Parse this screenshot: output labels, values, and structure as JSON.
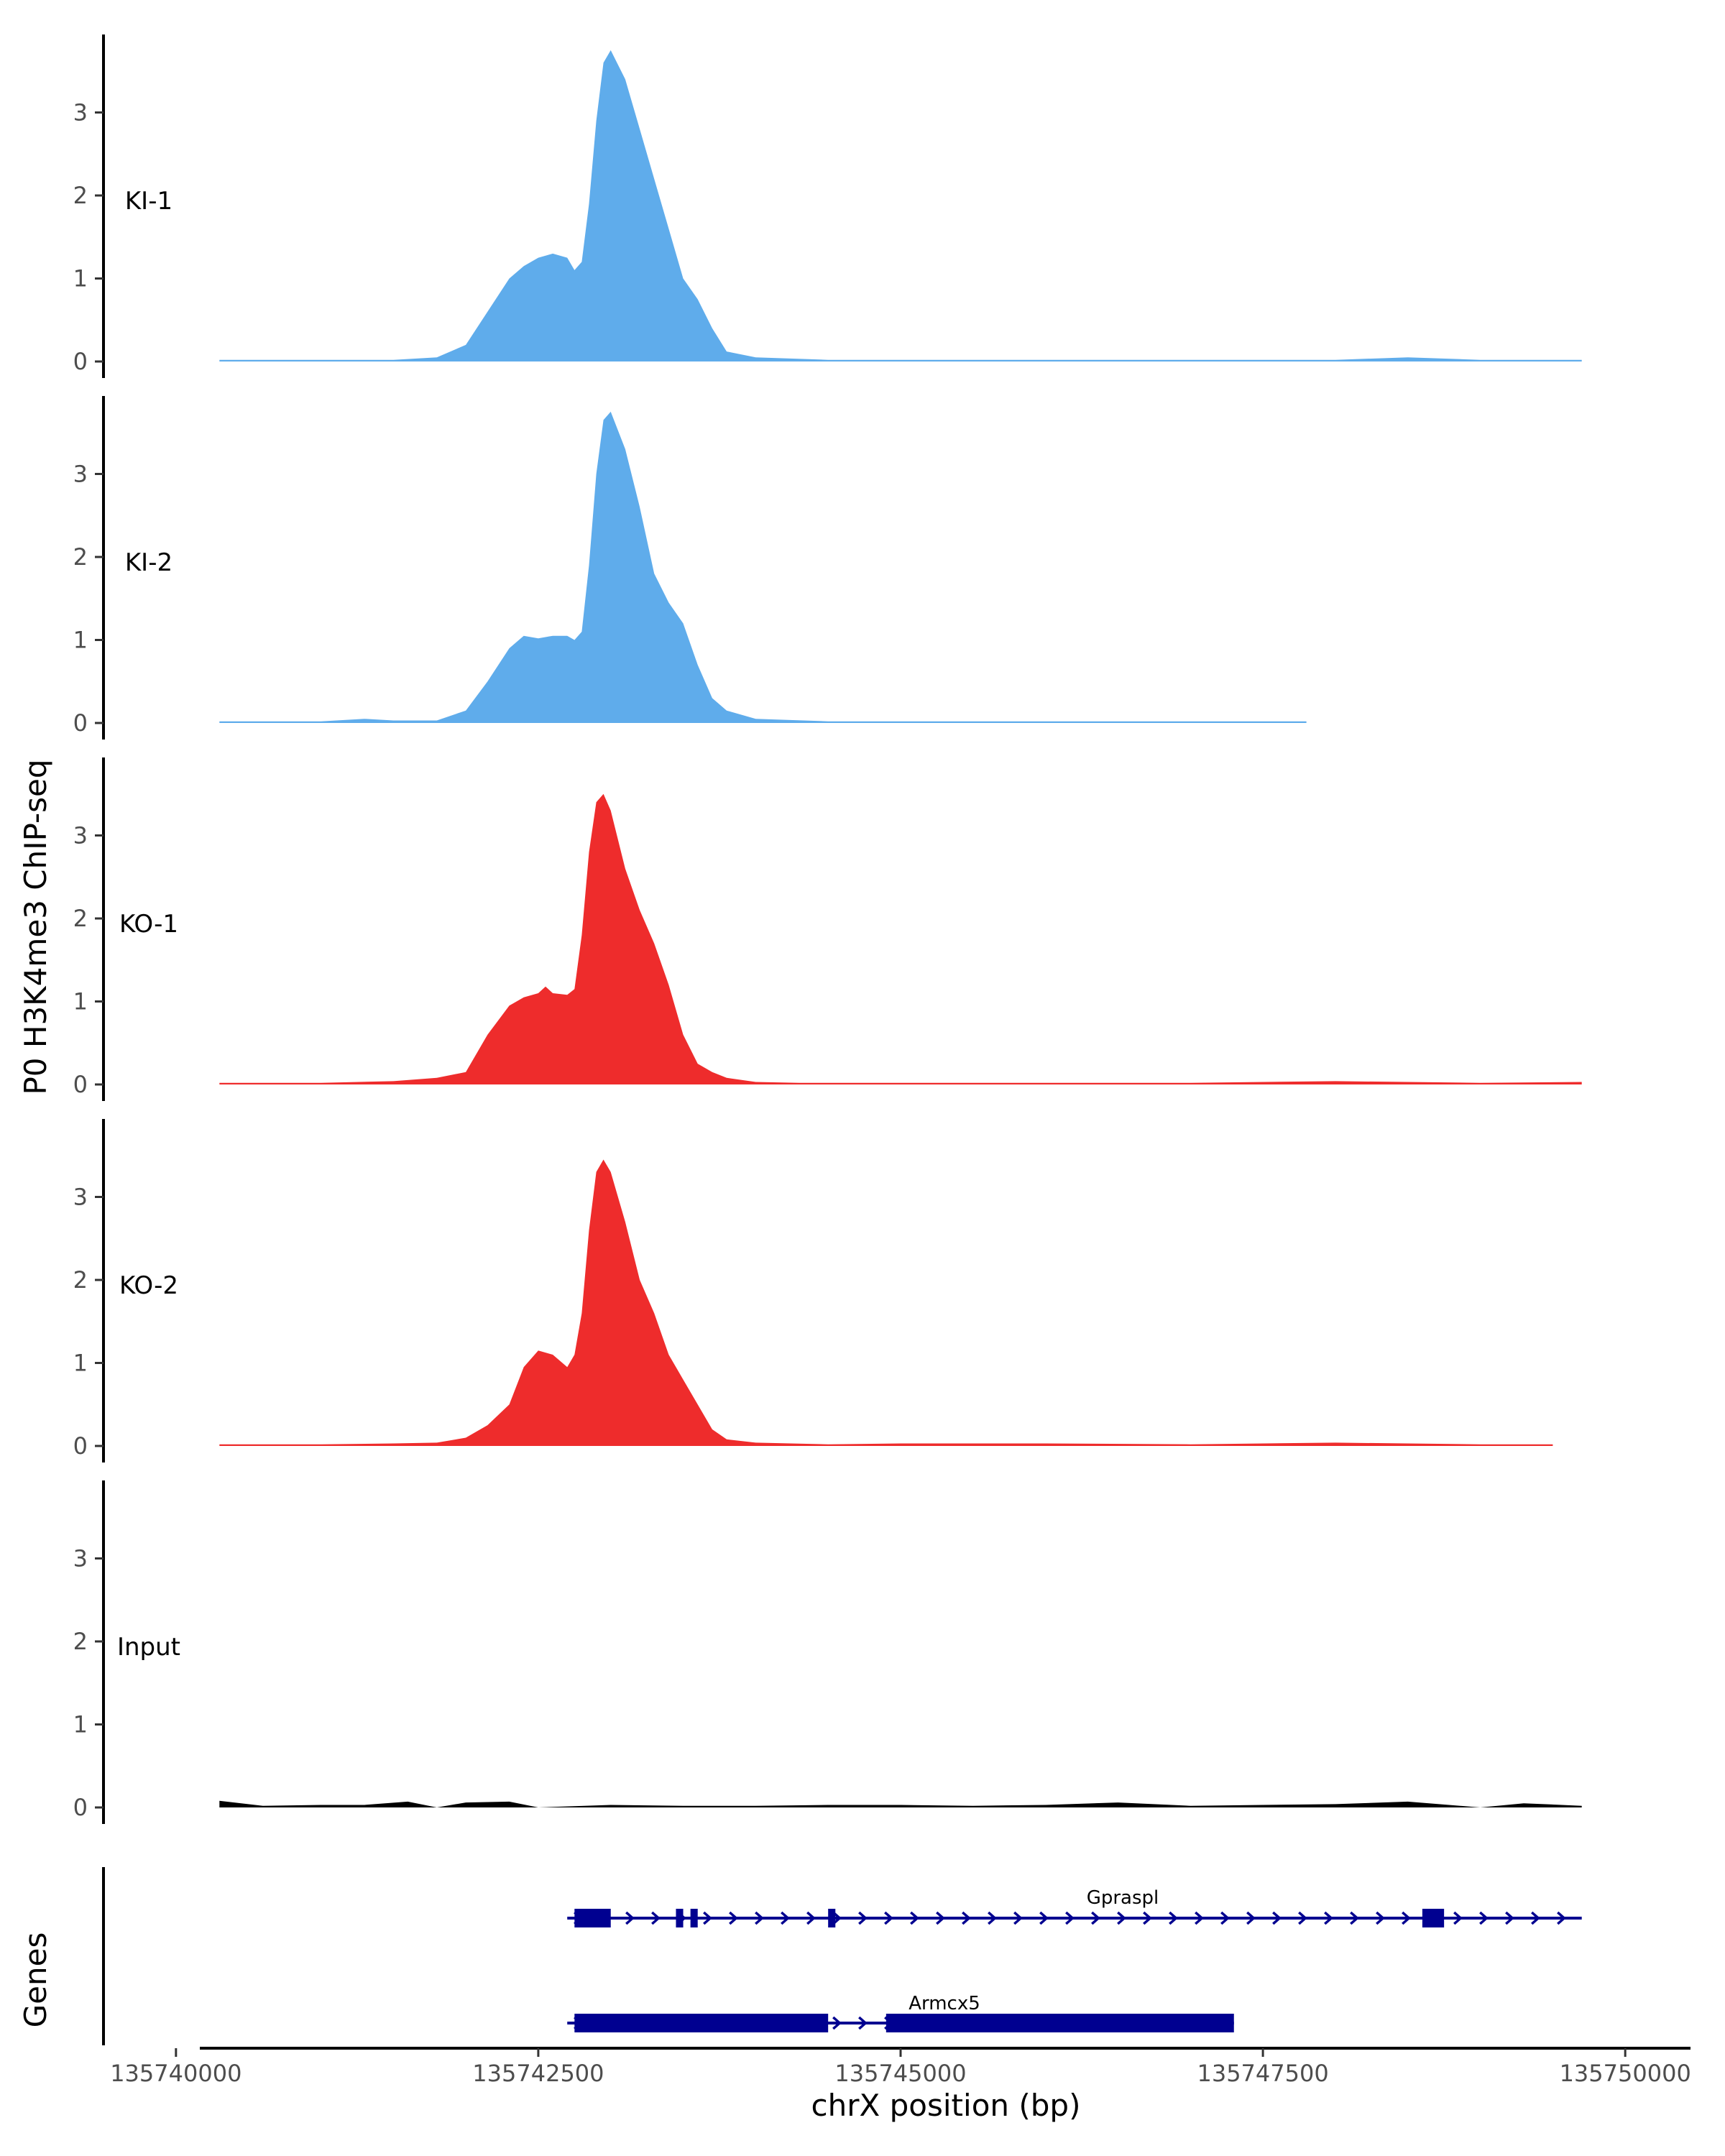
{
  "chart_data": {
    "type": "area",
    "ylabel": "P0 H3K4me3 ChIP-seq",
    "xlabel": "chrX position (bp)",
    "genes_label": "Genes",
    "xlim": [
      135739500,
      135750500
    ],
    "ylim": [
      0,
      3.9
    ],
    "x_ticks": [
      135740000,
      135742500,
      135745000,
      135747500,
      135750000
    ],
    "x_tick_labels": [
      "135740000",
      "135742500",
      "135745000",
      "135747500",
      "135750000"
    ],
    "y_ticks": [
      0,
      1,
      2,
      3
    ],
    "y_tick_labels": [
      "0",
      "1",
      "2",
      "3"
    ],
    "colors": {
      "KI": "#5FACEB",
      "KO": "#EE2C2C",
      "Input": "#000000",
      "gene": "#000090"
    },
    "tracks": [
      {
        "name": "KI-1",
        "color": "#5FACEB",
        "x": [
          135740300,
          135741000,
          135741500,
          135741800,
          135742000,
          135742150,
          135742300,
          135742400,
          135742500,
          135742600,
          135742700,
          135742750,
          135742800,
          135742850,
          135742900,
          135742950,
          135743000,
          135743100,
          135743200,
          135743300,
          135743400,
          135743500,
          135743600,
          135743700,
          135743800,
          135744000,
          135744500,
          135745000,
          135745500,
          135746000,
          135747000,
          135748000,
          135748500,
          135749000,
          135749700
        ],
        "y": [
          0.02,
          0.02,
          0.02,
          0.05,
          0.2,
          0.6,
          1.0,
          1.15,
          1.25,
          1.3,
          1.25,
          1.1,
          1.2,
          1.9,
          2.9,
          3.6,
          3.75,
          3.4,
          2.8,
          2.2,
          1.6,
          1.0,
          0.75,
          0.4,
          0.12,
          0.05,
          0.02,
          0.02,
          0.02,
          0.02,
          0.02,
          0.02,
          0.05,
          0.02,
          0.02
        ]
      },
      {
        "name": "KI-2",
        "color": "#5FACEB",
        "x": [
          135740300,
          135741000,
          135741300,
          135741500,
          135741800,
          135742000,
          135742150,
          135742300,
          135742400,
          135742500,
          135742600,
          135742700,
          135742750,
          135742800,
          135742850,
          135742900,
          135742950,
          135743000,
          135743100,
          135743200,
          135743300,
          135743400,
          135743500,
          135743600,
          135743700,
          135743800,
          135744000,
          135744500,
          135745000,
          135746000,
          135747000,
          135747800
        ],
        "y": [
          0.02,
          0.02,
          0.05,
          0.03,
          0.03,
          0.15,
          0.5,
          0.9,
          1.05,
          1.02,
          1.05,
          1.05,
          1.0,
          1.1,
          1.9,
          3.0,
          3.65,
          3.75,
          3.3,
          2.6,
          1.8,
          1.45,
          1.2,
          0.7,
          0.3,
          0.15,
          0.05,
          0.02,
          0.02,
          0.02,
          0.02,
          0.02
        ]
      },
      {
        "name": "KO-1",
        "color": "#EE2C2C",
        "x": [
          135740300,
          135741000,
          135741500,
          135741800,
          135742000,
          135742150,
          135742300,
          135742400,
          135742500,
          135742550,
          135742600,
          135742700,
          135742750,
          135742800,
          135742850,
          135742900,
          135742950,
          135743000,
          135743100,
          135743200,
          135743300,
          135743400,
          135743500,
          135743600,
          135743700,
          135743800,
          135744000,
          135744300,
          135745000,
          135746000,
          135747000,
          135748000,
          135749000,
          135749700
        ],
        "y": [
          0.02,
          0.02,
          0.04,
          0.08,
          0.15,
          0.6,
          0.95,
          1.05,
          1.1,
          1.18,
          1.1,
          1.08,
          1.15,
          1.8,
          2.8,
          3.4,
          3.5,
          3.3,
          2.6,
          2.1,
          1.7,
          1.2,
          0.6,
          0.25,
          0.15,
          0.08,
          0.03,
          0.02,
          0.02,
          0.02,
          0.02,
          0.04,
          0.02,
          0.03
        ]
      },
      {
        "name": "KO-2",
        "color": "#EE2C2C",
        "x": [
          135740300,
          135741000,
          135741500,
          135741800,
          135742000,
          135742150,
          135742300,
          135742400,
          135742500,
          135742600,
          135742700,
          135742750,
          135742800,
          135742850,
          135742900,
          135742950,
          135743000,
          135743100,
          135743200,
          135743300,
          135743400,
          135743500,
          135743600,
          135743700,
          135743800,
          135744000,
          135744500,
          135745000,
          135746000,
          135747000,
          135748000,
          135749000,
          135749500
        ],
        "y": [
          0.02,
          0.02,
          0.03,
          0.04,
          0.1,
          0.25,
          0.5,
          0.95,
          1.15,
          1.1,
          0.95,
          1.1,
          1.6,
          2.6,
          3.3,
          3.45,
          3.3,
          2.7,
          2.0,
          1.6,
          1.1,
          0.8,
          0.5,
          0.2,
          0.08,
          0.04,
          0.02,
          0.03,
          0.03,
          0.02,
          0.04,
          0.02,
          0.02
        ]
      },
      {
        "name": "Input",
        "color": "#000000",
        "x": [
          135740300,
          135740600,
          135741000,
          135741300,
          135741600,
          135741800,
          135742000,
          135742300,
          135742500,
          135743000,
          135743500,
          135744000,
          135744500,
          135745000,
          135745500,
          135746000,
          135746500,
          135747000,
          135747500,
          135748000,
          135748500,
          135749000,
          135749300,
          135749700
        ],
        "y": [
          0.08,
          0.02,
          0.03,
          0.03,
          0.07,
          0.0,
          0.06,
          0.07,
          0.0,
          0.03,
          0.02,
          0.02,
          0.03,
          0.03,
          0.02,
          0.03,
          0.06,
          0.02,
          0.03,
          0.04,
          0.07,
          0.0,
          0.05,
          0.02
        ]
      }
    ],
    "genes": [
      {
        "name": "Gpraspl",
        "start": 135742700,
        "end": 135749700,
        "exons": [
          [
            135742750,
            135743000
          ],
          [
            135743450,
            135743500
          ],
          [
            135743550,
            135743600
          ],
          [
            135744500,
            135744550
          ],
          [
            135748600,
            135748750
          ]
        ]
      },
      {
        "name": "Armcx5",
        "start": 135742700,
        "end": 135747300,
        "exons": [
          [
            135742750,
            135744500
          ],
          [
            135744900,
            135747300
          ]
        ]
      }
    ]
  }
}
